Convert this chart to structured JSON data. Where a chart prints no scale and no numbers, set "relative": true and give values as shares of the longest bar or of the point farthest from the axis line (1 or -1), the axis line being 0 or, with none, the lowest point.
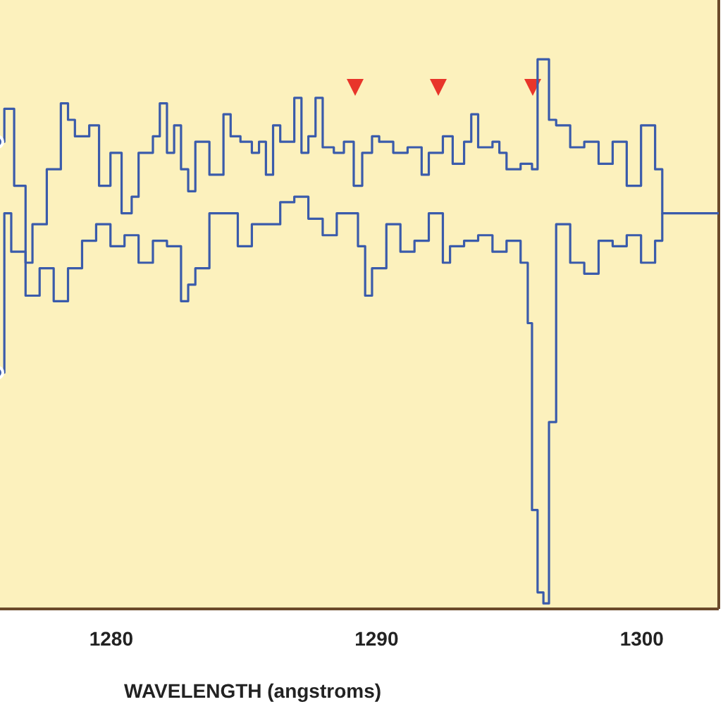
{
  "chart_data": {
    "type": "step",
    "relative": true,
    "xlabel": "WAVELENGTH (angstroms)",
    "xlim": [
      1275.7,
      1302.9
    ],
    "xticks": [
      1280,
      1290,
      1300
    ],
    "legend": false,
    "series": [
      {
        "color": "#3a5bab",
        "x": [
          1275.7,
          1275.97,
          1276.34,
          1276.77,
          1277.03,
          1277.57,
          1278.1,
          1278.37,
          1278.63,
          1279.17,
          1279.54,
          1279.97,
          1280.39,
          1280.77,
          1281.03,
          1281.57,
          1281.83,
          1282.1,
          1282.37,
          1282.63,
          1282.9,
          1283.17,
          1283.7,
          1284.23,
          1284.5,
          1284.87,
          1285.3,
          1285.57,
          1285.83,
          1286.1,
          1286.37,
          1286.9,
          1287.17,
          1287.43,
          1287.7,
          1287.97,
          1288.39,
          1288.77,
          1289.14,
          1289.46,
          1289.83,
          1290.1,
          1290.63,
          1291.17,
          1291.7,
          1291.97,
          1292.5,
          1292.87,
          1293.3,
          1293.57,
          1293.83,
          1294.37,
          1294.63,
          1294.9,
          1295.43,
          1295.86,
          1296.07,
          1296.5,
          1296.77,
          1297.3,
          1297.83,
          1298.37,
          1298.9,
          1299.43,
          1299.97,
          1300.5,
          1300.77,
          1302.9
        ],
        "values": [
          0.85,
          0.91,
          0.77,
          0.63,
          0.7,
          0.8,
          0.92,
          0.89,
          0.86,
          0.88,
          0.77,
          0.83,
          0.72,
          0.75,
          0.83,
          0.86,
          0.92,
          0.83,
          0.88,
          0.8,
          0.76,
          0.85,
          0.79,
          0.9,
          0.86,
          0.85,
          0.83,
          0.85,
          0.79,
          0.88,
          0.85,
          0.93,
          0.83,
          0.86,
          0.93,
          0.84,
          0.83,
          0.85,
          0.77,
          0.83,
          0.86,
          0.85,
          0.83,
          0.84,
          0.79,
          0.83,
          0.86,
          0.81,
          0.85,
          0.9,
          0.84,
          0.85,
          0.83,
          0.8,
          0.81,
          0.8,
          1,
          0.89,
          0.88,
          0.84,
          0.85,
          0.81,
          0.85,
          0.77,
          0.88,
          0.8,
          0.72,
          0.72
        ]
      },
      {
        "color": "#3a5bab",
        "x": [
          1275.7,
          1275.97,
          1276.23,
          1276.77,
          1277.3,
          1277.83,
          1278.37,
          1278.9,
          1279.43,
          1279.97,
          1280.5,
          1281.03,
          1281.57,
          1282.1,
          1282.63,
          1282.9,
          1283.17,
          1283.7,
          1284.23,
          1284.77,
          1285.3,
          1285.83,
          1286.37,
          1286.9,
          1287.43,
          1287.97,
          1288.5,
          1289.03,
          1289.3,
          1289.57,
          1289.83,
          1290.37,
          1290.9,
          1291.43,
          1291.97,
          1292.5,
          1292.77,
          1293.3,
          1293.83,
          1294.37,
          1294.9,
          1295.43,
          1295.7,
          1295.86,
          1296.07,
          1296.29,
          1296.5,
          1296.77,
          1297.3,
          1297.83,
          1298.37,
          1298.9,
          1299.43,
          1299.97,
          1300.5,
          1300.77
        ],
        "values": [
          0.43,
          0.72,
          0.65,
          0.57,
          0.62,
          0.56,
          0.62,
          0.67,
          0.7,
          0.66,
          0.68,
          0.63,
          0.67,
          0.66,
          0.56,
          0.59,
          0.62,
          0.72,
          0.72,
          0.66,
          0.7,
          0.7,
          0.74,
          0.75,
          0.71,
          0.68,
          0.72,
          0.72,
          0.66,
          0.57,
          0.62,
          0.7,
          0.65,
          0.67,
          0.72,
          0.63,
          0.66,
          0.67,
          0.68,
          0.65,
          0.67,
          0.63,
          0.52,
          0.18,
          0.03,
          0.01,
          0.34,
          0.7,
          0.63,
          0.61,
          0.67,
          0.66,
          0.68,
          0.63,
          0.67,
          0.72
        ]
      }
    ]
  }
}
